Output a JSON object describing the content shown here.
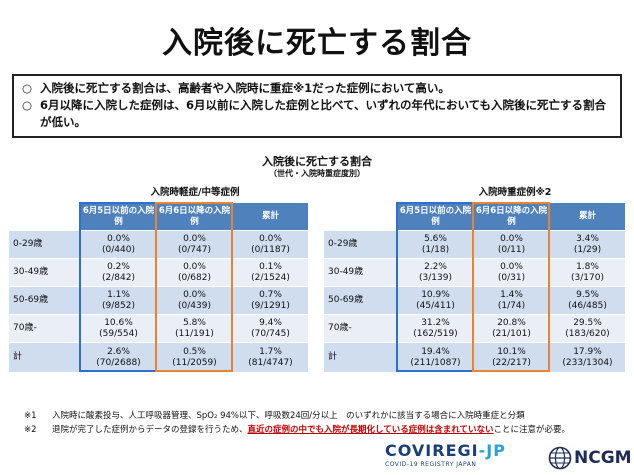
{
  "title": "入院後に死亡する割合",
  "summary": [
    {
      "bullet": "○",
      "text": "入院後に死亡する割合は、高齢者や入院時に重症※1だった症例において高い。"
    },
    {
      "bullet": "○",
      "text": "6月以降に入院した症例は、6月以前に入院した症例と比べて、いずれの年代においても入院後に死亡する割合が低い。"
    }
  ],
  "table_title": "入院後に死亡する割合",
  "table_subtitle": "（世代・入院時重症度別）",
  "mild": {
    "group_title": "入院時軽症/中等症例",
    "headers": [
      "",
      "6月5日以前の入院例",
      "6月6日以降の入院例",
      "累計"
    ],
    "rows": [
      {
        "label": "0-29歳",
        "c1": [
          "0.0%",
          "(0/440)"
        ],
        "c2": [
          "0.0%",
          "(0/747)"
        ],
        "c3": [
          "0.0%",
          "(0/1187)"
        ]
      },
      {
        "label": "30-49歳",
        "c1": [
          "0.2%",
          "(2/842)"
        ],
        "c2": [
          "0.0%",
          "(0/682)"
        ],
        "c3": [
          "0.1%",
          "(2/1524)"
        ]
      },
      {
        "label": "50-69歳",
        "c1": [
          "1.1%",
          "(9/852)"
        ],
        "c2": [
          "0.0%",
          "(0/439)"
        ],
        "c3": [
          "0.7%",
          "(9/1291)"
        ]
      },
      {
        "label": "70歳-",
        "c1": [
          "10.6%",
          "(59/554)"
        ],
        "c2": [
          "5.8%",
          "(11/191)"
        ],
        "c3": [
          "9.4%",
          "(70/745)"
        ]
      },
      {
        "label": "計",
        "c1": [
          "2.6%",
          "(70/2688)"
        ],
        "c2": [
          "0.5%",
          "(11/2059)"
        ],
        "c3": [
          "1.7%",
          "(81/4747)"
        ]
      }
    ]
  },
  "severe": {
    "group_title": "入院時重症例※2",
    "headers": [
      "",
      "6月5日以前の入院例",
      "6月6日以降の入院例",
      "累計"
    ],
    "rows": [
      {
        "label": "0-29歳",
        "c1": [
          "5.6%",
          "(1/18)"
        ],
        "c2": [
          "0.0%",
          "(0/11)"
        ],
        "c3": [
          "3.4%",
          "(1/29)"
        ]
      },
      {
        "label": "30-49歳",
        "c1": [
          "2.2%",
          "(3/139)"
        ],
        "c2": [
          "0.0%",
          "(0/31)"
        ],
        "c3": [
          "1.8%",
          "(3/170)"
        ]
      },
      {
        "label": "50-69歳",
        "c1": [
          "10.9%",
          "(45/411)"
        ],
        "c2": [
          "1.4%",
          "(1/74)"
        ],
        "c3": [
          "9.5%",
          "(46/485)"
        ]
      },
      {
        "label": "70歳-",
        "c1": [
          "31.2%",
          "(162/519)"
        ],
        "c2": [
          "20.8%",
          "(21/101)"
        ],
        "c3": [
          "29.5%",
          "(183/620)"
        ]
      },
      {
        "label": "計",
        "c1": [
          "19.4%",
          "(211/1087)"
        ],
        "c2": [
          "10.1%",
          "(22/217)"
        ],
        "c3": [
          "17.9%",
          "(233/1304)"
        ]
      }
    ]
  },
  "footnotes": {
    "note1_mark": "※1",
    "note1_text": "入院時に酸素投与、人工呼吸器管理、SpO₂ 94%以下、呼吸数24回/分以上　のいずれかに該当する場合に入院時重症と分類",
    "note2_mark": "※2",
    "note2_text_a": "退院が完了した症例からデータの登録を行うため、",
    "note2_text_red": "直近の症例の中でも入院が長期化している症例は含まれていない",
    "note2_text_b": "ことに注意が必要。"
  },
  "logos": {
    "covi_main": "COVIREGI",
    "covi_jp": "-JP",
    "covi_sub": "COVID-19 REGISTRY JAPAN",
    "ncgm": "NCGM"
  },
  "colors": {
    "header_blue": "#4f81bd",
    "highlight_blue": "#2f6fd0",
    "highlight_orange": "#e8842f",
    "note_red": "#c00000"
  }
}
